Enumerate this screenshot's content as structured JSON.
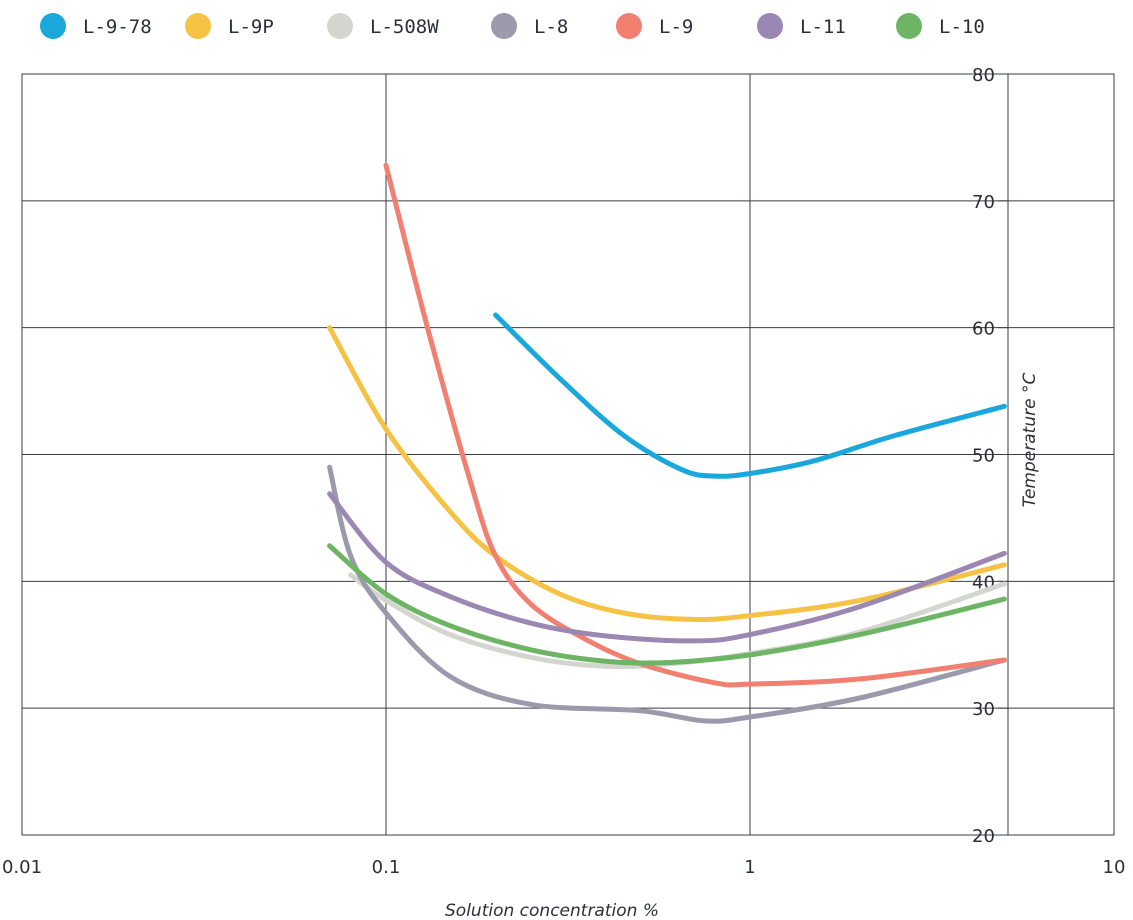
{
  "chart_data": {
    "type": "line",
    "title": "",
    "xlabel": "Solution concentration %",
    "ylabel": "Temperature °C",
    "x_scale": "log",
    "xlim": [
      0.01,
      10
    ],
    "ylim": [
      20,
      80
    ],
    "x_ticks": [
      "0.01",
      "0.1",
      "1",
      "10"
    ],
    "y_ticks": [
      "20",
      "30",
      "40",
      "50",
      "60",
      "70",
      "80"
    ],
    "grid": true,
    "legend_position": "top",
    "series": [
      {
        "name": "L-9-78",
        "color": "#1aa7db",
        "x": [
          0.2,
          0.3,
          0.45,
          0.65,
          0.8,
          1,
          1.5,
          2.5,
          5
        ],
        "y": [
          61,
          56,
          51.5,
          48.8,
          48.3,
          48.5,
          49.5,
          51.5,
          53.8
        ]
      },
      {
        "name": "L-9P",
        "color": "#f5c243",
        "x": [
          0.07,
          0.1,
          0.15,
          0.2,
          0.3,
          0.45,
          0.7,
          1,
          2,
          5
        ],
        "y": [
          60,
          52,
          45.5,
          42,
          39,
          37.5,
          37,
          37.3,
          38.5,
          41.3
        ]
      },
      {
        "name": "L-508W",
        "color": "#d3d6cf",
        "x": [
          0.08,
          0.1,
          0.15,
          0.25,
          0.4,
          0.6,
          1,
          2,
          5
        ],
        "y": [
          40.5,
          38.5,
          35.8,
          34,
          33.3,
          33.5,
          34.3,
          36,
          39.8
        ]
      },
      {
        "name": "L-8",
        "color": "#9a9aac",
        "x": [
          0.07,
          0.08,
          0.1,
          0.15,
          0.25,
          0.5,
          0.75,
          1,
          2,
          5
        ],
        "y": [
          49,
          42,
          37.5,
          32.5,
          30.3,
          29.8,
          29,
          29.3,
          30.8,
          33.8
        ]
      },
      {
        "name": "L-9",
        "color": "#f28071",
        "x": [
          0.1,
          0.13,
          0.17,
          0.2,
          0.25,
          0.35,
          0.5,
          0.8,
          1,
          2,
          5
        ],
        "y": [
          72.8,
          60,
          48,
          42,
          38.2,
          35.5,
          33.5,
          32,
          31.9,
          32.3,
          33.8
        ]
      },
      {
        "name": "L-11",
        "color": "#9a88b3",
        "x": [
          0.07,
          0.1,
          0.15,
          0.25,
          0.4,
          0.7,
          1,
          2,
          5
        ],
        "y": [
          46.9,
          41.5,
          38.8,
          36.7,
          35.7,
          35.3,
          35.8,
          38,
          42.2
        ]
      },
      {
        "name": "L-10",
        "color": "#6db465",
        "x": [
          0.07,
          0.1,
          0.15,
          0.25,
          0.4,
          0.6,
          1,
          2,
          5
        ],
        "y": [
          42.8,
          39,
          36.5,
          34.6,
          33.7,
          33.6,
          34.2,
          35.8,
          38.6
        ]
      }
    ]
  }
}
